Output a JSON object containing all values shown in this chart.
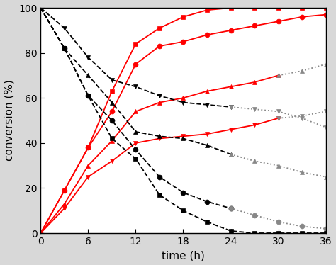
{
  "x_ticks": [
    0,
    6,
    12,
    18,
    24,
    30,
    36
  ],
  "y_ticks": [
    0,
    20,
    40,
    60,
    80,
    100
  ],
  "red_square": {
    "x": [
      0,
      3,
      6,
      9,
      12,
      15,
      18,
      21,
      24,
      27,
      30,
      33,
      36
    ],
    "y": [
      0,
      19,
      38,
      63,
      84,
      91,
      96,
      99,
      100,
      100,
      100,
      100,
      100
    ]
  },
  "red_circle": {
    "x": [
      0,
      3,
      6,
      9,
      12,
      15,
      18,
      21,
      24,
      27,
      30,
      33,
      36
    ],
    "y": [
      0,
      19,
      38,
      54,
      75,
      83,
      85,
      88,
      90,
      92,
      94,
      96,
      97
    ]
  },
  "red_triangle_up": {
    "x": [
      0,
      3,
      6,
      9,
      12,
      15,
      18,
      21,
      24,
      27,
      30,
      33,
      36
    ],
    "y": [
      0,
      13,
      30,
      41,
      54,
      58,
      60,
      63,
      65,
      67,
      70,
      72,
      75
    ]
  },
  "red_triangle_down": {
    "x": [
      0,
      3,
      6,
      9,
      12,
      15,
      18,
      21,
      24,
      27,
      30,
      33,
      36
    ],
    "y": [
      0,
      11,
      25,
      32,
      40,
      42,
      43,
      44,
      46,
      48,
      51,
      52,
      54
    ]
  },
  "black_triangle_down": {
    "x": [
      0,
      3,
      6,
      9,
      12,
      15,
      18,
      21,
      24,
      27,
      30,
      33,
      36
    ],
    "y": [
      100,
      91,
      78,
      68,
      65,
      61,
      58,
      57,
      56,
      55,
      54,
      51,
      47
    ]
  },
  "black_triangle_up": {
    "x": [
      0,
      3,
      6,
      9,
      12,
      15,
      18,
      21,
      24,
      27,
      30,
      33,
      36
    ],
    "y": [
      100,
      82,
      70,
      58,
      45,
      43,
      42,
      39,
      35,
      32,
      30,
      27,
      25
    ]
  },
  "black_circle": {
    "x": [
      0,
      3,
      6,
      9,
      12,
      15,
      18,
      21,
      24,
      27,
      30,
      33,
      36
    ],
    "y": [
      100,
      82,
      61,
      50,
      37,
      25,
      18,
      14,
      11,
      8,
      5,
      3,
      2
    ]
  },
  "black_square": {
    "x": [
      0,
      3,
      6,
      9,
      12,
      15,
      18,
      21,
      24,
      27,
      30,
      33,
      36
    ],
    "y": [
      100,
      82,
      61,
      42,
      33,
      17,
      10,
      5,
      1,
      0,
      0,
      0,
      0
    ]
  },
  "xlabel": "time (h)",
  "ylabel": "conversion (%)",
  "xlim": [
    0,
    36
  ],
  "ylim": [
    0,
    100
  ],
  "plot_bg": "#ffffff",
  "fig_bg": "#d8d8d8",
  "red_color": "#ff0000",
  "black_color": "#000000",
  "gray_color": "#888888"
}
